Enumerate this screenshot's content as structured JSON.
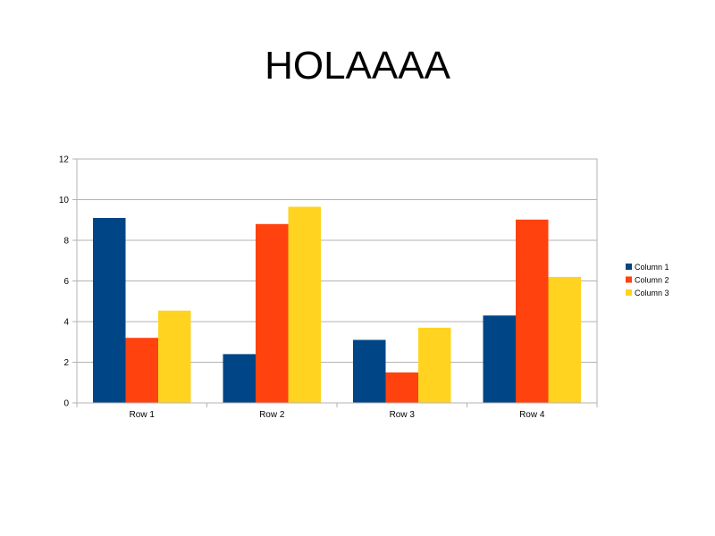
{
  "slide": {
    "title": "HOLAAAA"
  },
  "chart_data": {
    "type": "bar",
    "title": "HOLAAAA",
    "categories": [
      "Row 1",
      "Row 2",
      "Row 3",
      "Row 4"
    ],
    "series": [
      {
        "name": "Column 1",
        "color": "#004586",
        "values": [
          9.1,
          2.4,
          3.1,
          4.3
        ]
      },
      {
        "name": "Column 2",
        "color": "#ff420e",
        "values": [
          3.2,
          8.8,
          1.5,
          9.02
        ]
      },
      {
        "name": "Column 3",
        "color": "#ffd320",
        "values": [
          4.54,
          9.65,
          3.7,
          6.2
        ]
      }
    ],
    "ylim": [
      0,
      12
    ],
    "yticks": [
      0,
      2,
      4,
      6,
      8,
      10,
      12
    ],
    "grid": true,
    "legend": "right"
  }
}
